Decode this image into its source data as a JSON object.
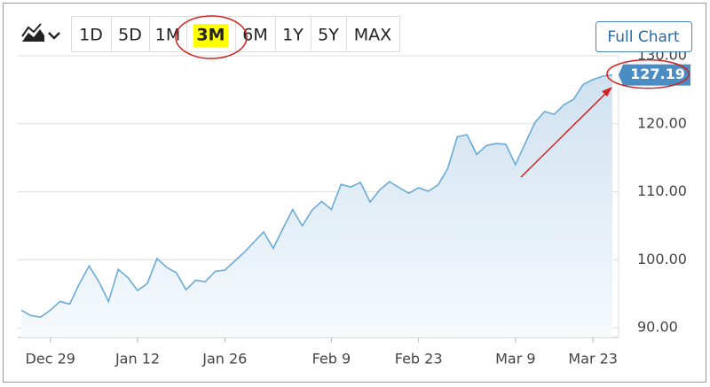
{
  "toolbar": {
    "ranges": [
      "1D",
      "5D",
      "1M",
      "3M",
      "6M",
      "1Y",
      "5Y",
      "MAX"
    ],
    "active": "3M",
    "full_chart": "Full Chart"
  },
  "chart_data": {
    "type": "area",
    "color": "#6aaad6",
    "categories": [
      null,
      null,
      null,
      "Dec 29",
      null,
      null,
      null,
      null,
      null,
      null,
      null,
      null,
      "Jan 12",
      null,
      null,
      null,
      null,
      null,
      null,
      null,
      null,
      "Jan 26",
      null,
      null,
      null,
      null,
      null,
      null,
      null,
      null,
      null,
      null,
      "Feb 9",
      null,
      null,
      null,
      null,
      null,
      null,
      null,
      null,
      "Feb 23",
      null,
      null,
      null,
      null,
      null,
      null,
      null,
      null,
      null,
      "Mar 9",
      null,
      null,
      null,
      null,
      null,
      null,
      null,
      "Mar 23",
      null,
      null
    ],
    "values": [
      92.6,
      91.8,
      91.6,
      92.6,
      93.9,
      93.5,
      96.5,
      99.1,
      96.8,
      93.9,
      98.6,
      97.4,
      95.5,
      96.5,
      100.2,
      98.9,
      98.1,
      95.6,
      97.0,
      96.8,
      98.3,
      98.5,
      99.8,
      101.1,
      102.6,
      104.1,
      101.7,
      104.6,
      107.4,
      105.0,
      107.3,
      108.6,
      107.4,
      111.1,
      110.7,
      111.4,
      108.5,
      110.3,
      111.5,
      110.6,
      109.8,
      110.6,
      110.1,
      111.0,
      113.4,
      118.1,
      118.4,
      115.5,
      116.8,
      117.1,
      117.0,
      114.0,
      117.1,
      120.2,
      121.8,
      121.4,
      122.8,
      123.6,
      125.8,
      126.5,
      127.0,
      127.19
    ],
    "ylim": [
      88.6,
      130
    ],
    "yticks": [
      {
        "value": 90,
        "label": "90.00"
      },
      {
        "value": 100,
        "label": "100.00"
      },
      {
        "value": 110,
        "label": "110.00"
      },
      {
        "value": 120,
        "label": "120.00"
      },
      {
        "value": 130,
        "label": "130.00"
      }
    ],
    "grid": true
  }
}
